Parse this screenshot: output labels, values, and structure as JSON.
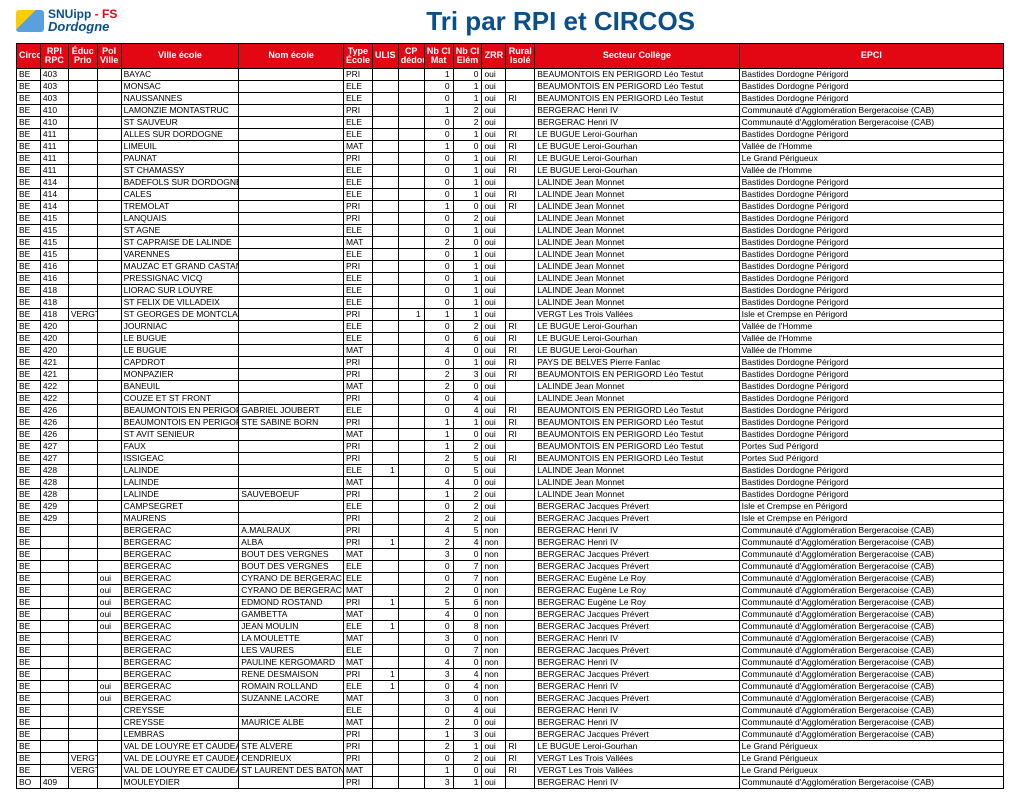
{
  "brand": {
    "line1a": "SNUipp",
    "line1b": " - FS",
    "line2": "Dordogne"
  },
  "title": "Tri par RPI et CIRCOS",
  "columns": [
    "Circo",
    "RPI RPC",
    "Éduc Prio",
    "Pol Ville",
    "Ville école",
    "Nom école",
    "Type École",
    "ULIS",
    "CP dédoub.",
    "Nb Cl Mat",
    "Nb Cl Elém",
    "ZRR",
    "Rural Isolé",
    "Secteur Collège",
    "EPCI"
  ],
  "rows": [
    [
      "BE",
      "403",
      "",
      "",
      "BAYAC",
      "",
      "PRI",
      "",
      "",
      "1",
      "0",
      "oui",
      "",
      "BEAUMONTOIS EN PERIGORD Léo Testut",
      "Bastides Dordogne Périgord"
    ],
    [
      "BE",
      "403",
      "",
      "",
      "MONSAC",
      "",
      "ELE",
      "",
      "",
      "0",
      "1",
      "oui",
      "",
      "BEAUMONTOIS EN PERIGORD Léo Testut",
      "Bastides Dordogne Périgord"
    ],
    [
      "BE",
      "403",
      "",
      "",
      "NAUSSANNES",
      "",
      "ELE",
      "",
      "",
      "0",
      "1",
      "oui",
      "RI",
      "BEAUMONTOIS EN PERIGORD Léo Testut",
      "Bastides Dordogne Périgord"
    ],
    [
      "BE",
      "410",
      "",
      "",
      "LAMONZIE MONTASTRUC",
      "",
      "PRI",
      "",
      "",
      "1",
      "2",
      "oui",
      "",
      "BERGERAC Henri IV",
      "Communauté d'Agglomération Bergeracoise (CAB)"
    ],
    [
      "BE",
      "410",
      "",
      "",
      "ST SAUVEUR",
      "",
      "ELE",
      "",
      "",
      "0",
      "2",
      "oui",
      "",
      "BERGERAC Henri IV",
      "Communauté d'Agglomération Bergeracoise (CAB)"
    ],
    [
      "BE",
      "411",
      "",
      "",
      "ALLES SUR DORDOGNE",
      "",
      "ELE",
      "",
      "",
      "0",
      "1",
      "oui",
      "RI",
      "LE BUGUE Leroi-Gourhan",
      "Bastides Dordogne Périgord"
    ],
    [
      "BE",
      "411",
      "",
      "",
      "LIMEUIL",
      "",
      "MAT",
      "",
      "",
      "1",
      "0",
      "oui",
      "RI",
      "LE BUGUE Leroi-Gourhan",
      "Vallée de l'Homme"
    ],
    [
      "BE",
      "411",
      "",
      "",
      "PAUNAT",
      "",
      "PRI",
      "",
      "",
      "0",
      "1",
      "oui",
      "RI",
      "LE BUGUE Leroi-Gourhan",
      "Le Grand Périgueux"
    ],
    [
      "BE",
      "411",
      "",
      "",
      "ST CHAMASSY",
      "",
      "ELE",
      "",
      "",
      "0",
      "1",
      "oui",
      "RI",
      "LE BUGUE Leroi-Gourhan",
      "Vallée de l'Homme"
    ],
    [
      "BE",
      "414",
      "",
      "",
      "BADEFOLS SUR DORDOGNE",
      "",
      "ELE",
      "",
      "",
      "0",
      "1",
      "oui",
      "",
      "LALINDE Jean Monnet",
      "Bastides Dordogne Périgord"
    ],
    [
      "BE",
      "414",
      "",
      "",
      "CALES",
      "",
      "ELE",
      "",
      "",
      "0",
      "1",
      "oui",
      "RI",
      "LALINDE Jean Monnet",
      "Bastides Dordogne Périgord"
    ],
    [
      "BE",
      "414",
      "",
      "",
      "TREMOLAT",
      "",
      "PRI",
      "",
      "",
      "1",
      "0",
      "oui",
      "RI",
      "LALINDE Jean Monnet",
      "Bastides Dordogne Périgord"
    ],
    [
      "BE",
      "415",
      "",
      "",
      "LANQUAIS",
      "",
      "PRI",
      "",
      "",
      "0",
      "2",
      "oui",
      "",
      "LALINDE Jean Monnet",
      "Bastides Dordogne Périgord"
    ],
    [
      "BE",
      "415",
      "",
      "",
      "ST AGNE",
      "",
      "ELE",
      "",
      "",
      "0",
      "1",
      "oui",
      "",
      "LALINDE Jean Monnet",
      "Bastides Dordogne Périgord"
    ],
    [
      "BE",
      "415",
      "",
      "",
      "ST CAPRAISE DE LALINDE",
      "",
      "MAT",
      "",
      "",
      "2",
      "0",
      "oui",
      "",
      "LALINDE Jean Monnet",
      "Bastides Dordogne Périgord"
    ],
    [
      "BE",
      "415",
      "",
      "",
      "VARENNES",
      "",
      "ELE",
      "",
      "",
      "0",
      "1",
      "oui",
      "",
      "LALINDE Jean Monnet",
      "Bastides Dordogne Périgord"
    ],
    [
      "BE",
      "416",
      "",
      "",
      "MAUZAC ET GRAND CASTANG",
      "",
      "PRI",
      "",
      "",
      "0",
      "1",
      "oui",
      "",
      "LALINDE Jean Monnet",
      "Bastides Dordogne Périgord"
    ],
    [
      "BE",
      "416",
      "",
      "",
      "PRESSIGNAC VICQ",
      "",
      "ELE",
      "",
      "",
      "0",
      "1",
      "oui",
      "",
      "LALINDE Jean Monnet",
      "Bastides Dordogne Périgord"
    ],
    [
      "BE",
      "418",
      "",
      "",
      "LIORAC SUR LOUYRE",
      "",
      "ELE",
      "",
      "",
      "0",
      "1",
      "oui",
      "",
      "LALINDE Jean Monnet",
      "Bastides Dordogne Périgord"
    ],
    [
      "BE",
      "418",
      "",
      "",
      "ST FELIX DE VILLADEIX",
      "",
      "ELE",
      "",
      "",
      "0",
      "1",
      "oui",
      "",
      "LALINDE Jean Monnet",
      "Bastides Dordogne Périgord"
    ],
    [
      "BE",
      "418",
      "VERGT",
      "",
      "ST GEORGES DE MONTCLAR",
      "",
      "PRI",
      "",
      "1",
      "1",
      "1",
      "oui",
      "",
      "VERGT Les Trois Vallées",
      "Isle et Crempse en Périgord"
    ],
    [
      "BE",
      "420",
      "",
      "",
      "JOURNIAC",
      "",
      "ELE",
      "",
      "",
      "0",
      "2",
      "oui",
      "RI",
      "LE BUGUE Leroi-Gourhan",
      "Vallée de l'Homme"
    ],
    [
      "BE",
      "420",
      "",
      "",
      "LE BUGUE",
      "",
      "ELE",
      "",
      "",
      "0",
      "6",
      "oui",
      "RI",
      "LE BUGUE Leroi-Gourhan",
      "Vallée de l'Homme"
    ],
    [
      "BE",
      "420",
      "",
      "",
      "LE BUGUE",
      "",
      "MAT",
      "",
      "",
      "4",
      "0",
      "oui",
      "RI",
      "LE BUGUE Leroi-Gourhan",
      "Vallée de l'Homme"
    ],
    [
      "BE",
      "421",
      "",
      "",
      "CAPDROT",
      "",
      "PRI",
      "",
      "",
      "0",
      "1",
      "oui",
      "RI",
      "PAYS DE BELVES Pierre Fanlac",
      "Bastides Dordogne Périgord"
    ],
    [
      "BE",
      "421",
      "",
      "",
      "MONPAZIER",
      "",
      "PRI",
      "",
      "",
      "2",
      "3",
      "oui",
      "RI",
      "BEAUMONTOIS EN PERIGORD Léo Testut",
      "Bastides Dordogne Périgord"
    ],
    [
      "BE",
      "422",
      "",
      "",
      "BANEUIL",
      "",
      "MAT",
      "",
      "",
      "2",
      "0",
      "oui",
      "",
      "LALINDE Jean Monnet",
      "Bastides Dordogne Périgord"
    ],
    [
      "BE",
      "422",
      "",
      "",
      "COUZE ET ST FRONT",
      "",
      "PRI",
      "",
      "",
      "0",
      "4",
      "oui",
      "",
      "LALINDE Jean Monnet",
      "Bastides Dordogne Périgord"
    ],
    [
      "BE",
      "426",
      "",
      "",
      "BEAUMONTOIS EN PERIGORD",
      "GABRIEL JOUBERT",
      "ELE",
      "",
      "",
      "0",
      "4",
      "oui",
      "RI",
      "BEAUMONTOIS EN PERIGORD Léo Testut",
      "Bastides Dordogne Périgord"
    ],
    [
      "BE",
      "426",
      "",
      "",
      "BEAUMONTOIS EN PERIGORD",
      "STE SABINE BORN",
      "PRI",
      "",
      "",
      "1",
      "1",
      "oui",
      "RI",
      "BEAUMONTOIS EN PERIGORD Léo Testut",
      "Bastides Dordogne Périgord"
    ],
    [
      "BE",
      "426",
      "",
      "",
      "ST AVIT SENIEUR",
      "",
      "MAT",
      "",
      "",
      "1",
      "0",
      "oui",
      "RI",
      "BEAUMONTOIS EN PERIGORD Léo Testut",
      "Bastides Dordogne Périgord"
    ],
    [
      "BE",
      "427",
      "",
      "",
      "FAUX",
      "",
      "PRI",
      "",
      "",
      "1",
      "2",
      "oui",
      "",
      "BEAUMONTOIS EN PERIGORD Léo Testut",
      "Portes Sud Périgord"
    ],
    [
      "BE",
      "427",
      "",
      "",
      "ISSIGEAC",
      "",
      "PRI",
      "",
      "",
      "2",
      "5",
      "oui",
      "RI",
      "BEAUMONTOIS EN PERIGORD Léo Testut",
      "Portes Sud Périgord"
    ],
    [
      "BE",
      "428",
      "",
      "",
      "LALINDE",
      "",
      "ELE",
      "1",
      "",
      "0",
      "5",
      "oui",
      "",
      "LALINDE Jean Monnet",
      "Bastides Dordogne Périgord"
    ],
    [
      "BE",
      "428",
      "",
      "",
      "LALINDE",
      "",
      "MAT",
      "",
      "",
      "4",
      "0",
      "oui",
      "",
      "LALINDE Jean Monnet",
      "Bastides Dordogne Périgord"
    ],
    [
      "BE",
      "428",
      "",
      "",
      "LALINDE",
      "SAUVEBOEUF",
      "PRI",
      "",
      "",
      "1",
      "2",
      "oui",
      "",
      "LALINDE Jean Monnet",
      "Bastides Dordogne Périgord"
    ],
    [
      "BE",
      "429",
      "",
      "",
      "CAMPSEGRET",
      "",
      "ELE",
      "",
      "",
      "0",
      "2",
      "oui",
      "",
      "BERGERAC Jacques Prévert",
      "Isle et Crempse en Périgord"
    ],
    [
      "BE",
      "429",
      "",
      "",
      "MAURENS",
      "",
      "PRI",
      "",
      "",
      "2",
      "2",
      "oui",
      "",
      "BERGERAC Jacques Prévert",
      "Isle et Crempse en Périgord"
    ],
    [
      "BE",
      "",
      "",
      "",
      "BERGERAC",
      "A.MALRAUX",
      "PRI",
      "",
      "",
      "4",
      "5",
      "non",
      "",
      "BERGERAC Henri IV",
      "Communauté d'Agglomération Bergeracoise (CAB)"
    ],
    [
      "BE",
      "",
      "",
      "",
      "BERGERAC",
      "ALBA",
      "PRI",
      "1",
      "",
      "2",
      "4",
      "non",
      "",
      "BERGERAC Henri IV",
      "Communauté d'Agglomération Bergeracoise (CAB)"
    ],
    [
      "BE",
      "",
      "",
      "",
      "BERGERAC",
      "BOUT DES VERGNES",
      "MAT",
      "",
      "",
      "3",
      "0",
      "non",
      "",
      "BERGERAC Jacques Prévert",
      "Communauté d'Agglomération Bergeracoise (CAB)"
    ],
    [
      "BE",
      "",
      "",
      "",
      "BERGERAC",
      "BOUT DES VERGNES",
      "ELE",
      "",
      "",
      "0",
      "7",
      "non",
      "",
      "BERGERAC Jacques Prévert",
      "Communauté d'Agglomération Bergeracoise (CAB)"
    ],
    [
      "BE",
      "",
      "",
      "oui",
      "BERGERAC",
      "CYRANO DE BERGERAC",
      "ELE",
      "",
      "",
      "0",
      "7",
      "non",
      "",
      "BERGERAC Eugène Le Roy",
      "Communauté d'Agglomération Bergeracoise (CAB)"
    ],
    [
      "BE",
      "",
      "",
      "oui",
      "BERGERAC",
      "CYRANO DE BERGERAC",
      "MAT",
      "",
      "",
      "2",
      "0",
      "non",
      "",
      "BERGERAC Eugène Le Roy",
      "Communauté d'Agglomération Bergeracoise (CAB)"
    ],
    [
      "BE",
      "",
      "",
      "oui",
      "BERGERAC",
      "EDMOND ROSTAND",
      "PRI",
      "1",
      "",
      "5",
      "6",
      "non",
      "",
      "BERGERAC Eugène Le Roy",
      "Communauté d'Agglomération Bergeracoise (CAB)"
    ],
    [
      "BE",
      "",
      "",
      "oui",
      "BERGERAC",
      "GAMBETTA",
      "MAT",
      "",
      "",
      "4",
      "0",
      "non",
      "",
      "BERGERAC Jacques Prévert",
      "Communauté d'Agglomération Bergeracoise (CAB)"
    ],
    [
      "BE",
      "",
      "",
      "oui",
      "BERGERAC",
      "JEAN MOULIN",
      "ELE",
      "1",
      "",
      "0",
      "8",
      "non",
      "",
      "BERGERAC Jacques Prévert",
      "Communauté d'Agglomération Bergeracoise (CAB)"
    ],
    [
      "BE",
      "",
      "",
      "",
      "BERGERAC",
      "LA MOULETTE",
      "MAT",
      "",
      "",
      "3",
      "0",
      "non",
      "",
      "BERGERAC Henri IV",
      "Communauté d'Agglomération Bergeracoise (CAB)"
    ],
    [
      "BE",
      "",
      "",
      "",
      "BERGERAC",
      "LES VAURES",
      "ELE",
      "",
      "",
      "0",
      "7",
      "non",
      "",
      "BERGERAC Jacques Prévert",
      "Communauté d'Agglomération Bergeracoise (CAB)"
    ],
    [
      "BE",
      "",
      "",
      "",
      "BERGERAC",
      "PAULINE KERGOMARD",
      "MAT",
      "",
      "",
      "4",
      "0",
      "non",
      "",
      "BERGERAC Henri IV",
      "Communauté d'Agglomération Bergeracoise (CAB)"
    ],
    [
      "BE",
      "",
      "",
      "",
      "BERGERAC",
      "RENE DESMAISON",
      "PRI",
      "1",
      "",
      "3",
      "4",
      "non",
      "",
      "BERGERAC Jacques Prévert",
      "Communauté d'Agglomération Bergeracoise (CAB)"
    ],
    [
      "BE",
      "",
      "",
      "oui",
      "BERGERAC",
      "ROMAIN ROLLAND",
      "ELE",
      "1",
      "",
      "0",
      "4",
      "non",
      "",
      "BERGERAC Henri IV",
      "Communauté d'Agglomération Bergeracoise (CAB)"
    ],
    [
      "BE",
      "",
      "",
      "oui",
      "BERGERAC",
      "SUZANNE LACORE",
      "MAT",
      "",
      "",
      "3",
      "0",
      "non",
      "",
      "BERGERAC Jacques Prévert",
      "Communauté d'Agglomération Bergeracoise (CAB)"
    ],
    [
      "BE",
      "",
      "",
      "",
      "CREYSSE",
      "",
      "ELE",
      "",
      "",
      "0",
      "4",
      "oui",
      "",
      "BERGERAC Henri IV",
      "Communauté d'Agglomération Bergeracoise (CAB)"
    ],
    [
      "BE",
      "",
      "",
      "",
      "CREYSSE",
      "MAURICE ALBE",
      "MAT",
      "",
      "",
      "2",
      "0",
      "oui",
      "",
      "BERGERAC Henri IV",
      "Communauté d'Agglomération Bergeracoise (CAB)"
    ],
    [
      "BE",
      "",
      "",
      "",
      "LEMBRAS",
      "",
      "PRI",
      "",
      "",
      "1",
      "3",
      "oui",
      "",
      "BERGERAC Jacques Prévert",
      "Communauté d'Agglomération Bergeracoise (CAB)"
    ],
    [
      "BE",
      "",
      "",
      "",
      "VAL DE LOUYRE ET CAUDEAU",
      "STE ALVERE",
      "PRI",
      "",
      "",
      "2",
      "1",
      "oui",
      "RI",
      "LE BUGUE Leroi-Gourhan",
      "Le Grand Périgueux"
    ],
    [
      "BE",
      "",
      "VERGT",
      "",
      "VAL DE LOUYRE ET CAUDEAU",
      "CENDRIEUX",
      "PRI",
      "",
      "",
      "0",
      "2",
      "oui",
      "RI",
      "VERGT Les Trois Vallées",
      "Le Grand Périgueux"
    ],
    [
      "BE",
      "",
      "VERGT",
      "",
      "VAL DE LOUYRE ET CAUDEAU",
      "ST LAURENT DES BATONS",
      "MAT",
      "",
      "",
      "1",
      "0",
      "oui",
      "RI",
      "VERGT Les Trois Vallées",
      "Le Grand Périgueux"
    ],
    [
      "BO",
      "409",
      "",
      "",
      "MOULEYDIER",
      "",
      "PRI",
      "",
      "",
      "3",
      "1",
      "oui",
      "",
      "BERGERAC Henri IV",
      "Communauté d'Agglomération Bergeracoise (CAB)"
    ]
  ],
  "numericCols": [
    7,
    8,
    9,
    10
  ],
  "colClasses": [
    "c-circo",
    "c-rpi",
    "c-educ",
    "c-pol",
    "c-ville",
    "c-nom",
    "c-type",
    "c-ulis",
    "c-cp",
    "c-mat",
    "c-elem",
    "c-zrr",
    "c-rural",
    "c-sect",
    "c-epci"
  ]
}
